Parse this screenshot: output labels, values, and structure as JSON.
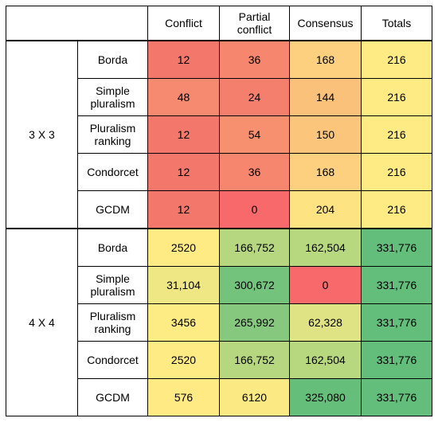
{
  "table": {
    "headers": [
      "Conflict",
      "Partial\nconflict",
      "Consensus",
      "Totals"
    ],
    "groups": [
      {
        "label": "3 X 3",
        "rows": [
          {
            "method": "Borda",
            "cells": [
              {
                "value": "12",
                "color": "#f4776c"
              },
              {
                "value": "36",
                "color": "#f6866e"
              },
              {
                "value": "168",
                "color": "#fcd07e"
              },
              {
                "value": "216",
                "color": "#ffeb84"
              }
            ]
          },
          {
            "method": "Simple\npluralism",
            "cells": [
              {
                "value": "48",
                "color": "#f68a70"
              },
              {
                "value": "24",
                "color": "#f57f6d"
              },
              {
                "value": "144",
                "color": "#fac17a"
              },
              {
                "value": "216",
                "color": "#ffeb84"
              }
            ]
          },
          {
            "method": "Pluralism\nranking",
            "cells": [
              {
                "value": "12",
                "color": "#f4776c"
              },
              {
                "value": "54",
                "color": "#f6906f"
              },
              {
                "value": "150",
                "color": "#fbc67b"
              },
              {
                "value": "216",
                "color": "#ffeb84"
              }
            ]
          },
          {
            "method": "Condorcet",
            "cells": [
              {
                "value": "12",
                "color": "#f4776c"
              },
              {
                "value": "36",
                "color": "#f6866e"
              },
              {
                "value": "168",
                "color": "#fcd07e"
              },
              {
                "value": "216",
                "color": "#ffeb84"
              }
            ]
          },
          {
            "method": "GCDM",
            "cells": [
              {
                "value": "12",
                "color": "#f4776c"
              },
              {
                "value": "0",
                "color": "#f8696b"
              },
              {
                "value": "204",
                "color": "#fee382"
              },
              {
                "value": "216",
                "color": "#ffeb84"
              }
            ]
          }
        ]
      },
      {
        "label": "4 X 4",
        "rows": [
          {
            "method": "Borda",
            "cells": [
              {
                "value": "2520",
                "color": "#ffeb84"
              },
              {
                "value": "166,752",
                "color": "#b6d780"
              },
              {
                "value": "162,504",
                "color": "#b8d880"
              },
              {
                "value": "331,776",
                "color": "#63be7b"
              }
            ]
          },
          {
            "method": "Simple\npluralism",
            "cells": [
              {
                "value": "31,104",
                "color": "#efe784"
              },
              {
                "value": "300,672",
                "color": "#74c37c"
              },
              {
                "value": "0",
                "color": "#f8696b"
              },
              {
                "value": "331,776",
                "color": "#63be7b"
              }
            ]
          },
          {
            "method": "Pluralism\nranking",
            "cells": [
              {
                "value": "3456",
                "color": "#fdeb84"
              },
              {
                "value": "265,992",
                "color": "#86c87d"
              },
              {
                "value": "62,328",
                "color": "#e0e383"
              },
              {
                "value": "331,776",
                "color": "#63be7b"
              }
            ]
          },
          {
            "method": "Condorcet",
            "cells": [
              {
                "value": "2520",
                "color": "#ffeb84"
              },
              {
                "value": "166,752",
                "color": "#b6d780"
              },
              {
                "value": "162,504",
                "color": "#b8d880"
              },
              {
                "value": "331,776",
                "color": "#63be7b"
              }
            ]
          },
          {
            "method": "GCDM",
            "cells": [
              {
                "value": "576",
                "color": "#ffea83"
              },
              {
                "value": "6120",
                "color": "#fbe983"
              },
              {
                "value": "325,080",
                "color": "#65bf7b"
              },
              {
                "value": "331,776",
                "color": "#63be7b"
              }
            ]
          }
        ]
      }
    ]
  }
}
